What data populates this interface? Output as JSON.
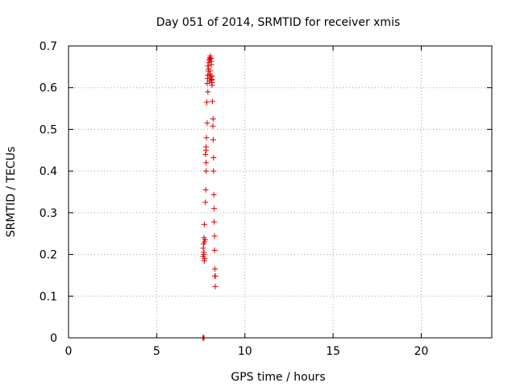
{
  "chart_data": {
    "type": "scatter",
    "title": "Day 051 of 2014, SRMTID for receiver xmis",
    "xlabel": "GPS time / hours",
    "ylabel": "SRMTID / TECUs",
    "xlim": [
      0,
      24
    ],
    "ylim": [
      0,
      0.7
    ],
    "x_ticks": [
      0,
      5,
      10,
      15,
      20
    ],
    "x_tick_labels": [
      "0",
      "5",
      "10",
      "15",
      "20"
    ],
    "y_ticks": [
      0,
      0.1,
      0.2,
      0.3,
      0.4,
      0.5,
      0.6,
      0.7
    ],
    "y_tick_labels": [
      "0",
      "0.1",
      "0.2",
      "0.3",
      "0.4",
      "0.5",
      "0.6",
      "0.7"
    ],
    "grid": true,
    "legend": "none",
    "series": [
      {
        "marker": "plus",
        "color": "#dd0000",
        "points": [
          {
            "x": 7.62,
            "y": 0.0
          },
          {
            "x": 7.65,
            "y": 0.0
          },
          {
            "x": 7.68,
            "y": 0.0
          },
          {
            "x": 7.63,
            "y": 0.195
          },
          {
            "x": 7.66,
            "y": 0.2
          },
          {
            "x": 7.7,
            "y": 0.185
          },
          {
            "x": 7.68,
            "y": 0.205
          },
          {
            "x": 7.64,
            "y": 0.215
          },
          {
            "x": 7.72,
            "y": 0.19
          },
          {
            "x": 7.66,
            "y": 0.225
          },
          {
            "x": 7.7,
            "y": 0.23
          },
          {
            "x": 7.68,
            "y": 0.24
          },
          {
            "x": 7.74,
            "y": 0.235
          },
          {
            "x": 7.7,
            "y": 0.272
          },
          {
            "x": 7.76,
            "y": 0.325
          },
          {
            "x": 7.78,
            "y": 0.355
          },
          {
            "x": 7.8,
            "y": 0.4
          },
          {
            "x": 7.8,
            "y": 0.42
          },
          {
            "x": 7.76,
            "y": 0.44
          },
          {
            "x": 7.8,
            "y": 0.45
          },
          {
            "x": 7.8,
            "y": 0.458
          },
          {
            "x": 7.82,
            "y": 0.48
          },
          {
            "x": 7.86,
            "y": 0.515
          },
          {
            "x": 7.84,
            "y": 0.565
          },
          {
            "x": 7.9,
            "y": 0.59
          },
          {
            "x": 7.86,
            "y": 0.61
          },
          {
            "x": 7.88,
            "y": 0.622
          },
          {
            "x": 7.9,
            "y": 0.63
          },
          {
            "x": 7.92,
            "y": 0.64
          },
          {
            "x": 7.94,
            "y": 0.645
          },
          {
            "x": 7.9,
            "y": 0.652
          },
          {
            "x": 7.96,
            "y": 0.66
          },
          {
            "x": 7.98,
            "y": 0.665
          },
          {
            "x": 8.0,
            "y": 0.668
          },
          {
            "x": 8.02,
            "y": 0.672
          },
          {
            "x": 8.04,
            "y": 0.676
          },
          {
            "x": 8.06,
            "y": 0.67
          },
          {
            "x": 8.08,
            "y": 0.663
          },
          {
            "x": 8.1,
            "y": 0.655
          },
          {
            "x": 8.04,
            "y": 0.64
          },
          {
            "x": 8.0,
            "y": 0.632
          },
          {
            "x": 8.06,
            "y": 0.625
          },
          {
            "x": 8.1,
            "y": 0.618
          },
          {
            "x": 8.12,
            "y": 0.612
          },
          {
            "x": 8.14,
            "y": 0.606
          },
          {
            "x": 8.0,
            "y": 0.615
          },
          {
            "x": 8.12,
            "y": 0.62
          },
          {
            "x": 8.14,
            "y": 0.628
          },
          {
            "x": 8.16,
            "y": 0.567
          },
          {
            "x": 8.2,
            "y": 0.525
          },
          {
            "x": 8.18,
            "y": 0.508
          },
          {
            "x": 8.2,
            "y": 0.475
          },
          {
            "x": 8.22,
            "y": 0.432
          },
          {
            "x": 8.22,
            "y": 0.4
          },
          {
            "x": 8.24,
            "y": 0.343
          },
          {
            "x": 8.26,
            "y": 0.31
          },
          {
            "x": 8.26,
            "y": 0.278
          },
          {
            "x": 8.28,
            "y": 0.244
          },
          {
            "x": 8.28,
            "y": 0.21
          },
          {
            "x": 8.3,
            "y": 0.165
          },
          {
            "x": 8.3,
            "y": 0.148
          },
          {
            "x": 8.32,
            "y": 0.148
          },
          {
            "x": 8.32,
            "y": 0.123
          }
        ]
      }
    ]
  }
}
